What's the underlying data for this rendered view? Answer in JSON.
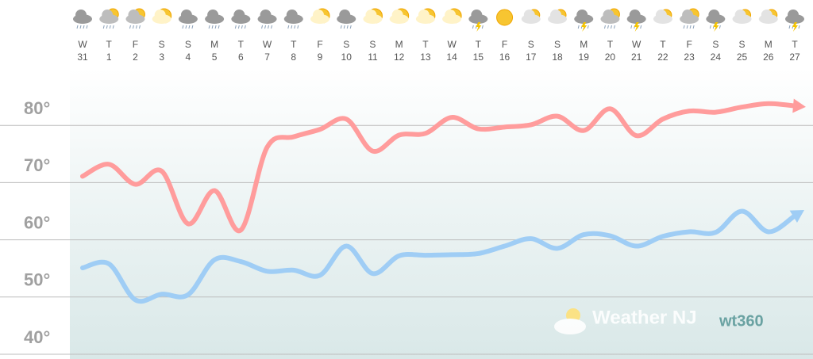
{
  "chart_data": {
    "type": "line",
    "weekdays": [
      "W",
      "T",
      "F",
      "S",
      "S",
      "M",
      "T",
      "W",
      "T",
      "F",
      "S",
      "S",
      "M",
      "T",
      "W",
      "T",
      "F",
      "S",
      "S",
      "M",
      "T",
      "W",
      "T",
      "F",
      "S",
      "S",
      "M",
      "T"
    ],
    "categories": [
      "31",
      "1",
      "2",
      "3",
      "4",
      "5",
      "6",
      "7",
      "8",
      "9",
      "10",
      "11",
      "12",
      "13",
      "14",
      "15",
      "16",
      "17",
      "18",
      "19",
      "20",
      "21",
      "22",
      "23",
      "24",
      "25",
      "26",
      "27"
    ],
    "series": [
      {
        "color": "#ff9c9c",
        "values": [
          71.1,
          73.2,
          69.7,
          72,
          62.8,
          68.6,
          61.7,
          76.2,
          78,
          79.3,
          81.1,
          75.5,
          78.3,
          78.6,
          81.4,
          79.4,
          79.7,
          80.1,
          81.6,
          79.1,
          82.9,
          78.2,
          81.1,
          82.5,
          82.3,
          83.2,
          83.8,
          83.4
        ]
      },
      {
        "color": "#9fcdf5",
        "values": [
          55.1,
          55.8,
          49.5,
          50.5,
          50.4,
          56.5,
          56.2,
          54.5,
          54.7,
          53.8,
          58.9,
          54.1,
          57.2,
          57.3,
          57.4,
          57.6,
          58.9,
          60.2,
          58.5,
          60.9,
          60.7,
          58.9,
          60.6,
          61.4,
          61.3,
          65,
          61.4,
          64.2
        ]
      }
    ],
    "ylim": [
      40,
      90
    ],
    "yticks": [
      {
        "value": 40,
        "label": "40°"
      },
      {
        "value": 50,
        "label": "50°"
      },
      {
        "value": 60,
        "label": "60°"
      },
      {
        "value": 70,
        "label": "70°"
      },
      {
        "value": 80,
        "label": "80°"
      }
    ],
    "grid": true,
    "annotations": [
      "Weather NJ",
      "wt360"
    ]
  }
}
